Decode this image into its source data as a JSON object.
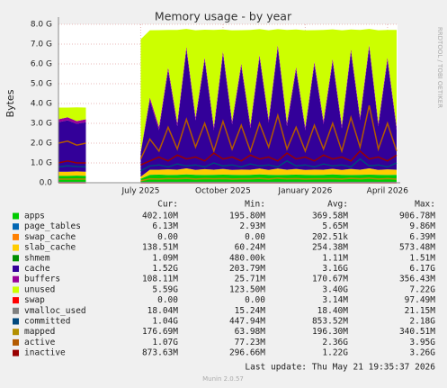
{
  "chart_data": {
    "type": "area",
    "title": "Memory usage - by year",
    "ylabel": "Bytes",
    "side_text": "RRDTOOL / TOBI OETIKER",
    "footer": "Last update: Thu May 21 19:35:37 2026",
    "version": "Munin 2.0.57",
    "grid": true,
    "legend_headers": [
      "Cur:",
      "Min:",
      "Avg:",
      "Max:"
    ],
    "categories": [
      null,
      null,
      null,
      null,
      null,
      null,
      null,
      null,
      null,
      "July 2025",
      null,
      null,
      null,
      null,
      null,
      null,
      null,
      null,
      "October 2025",
      null,
      null,
      null,
      null,
      null,
      null,
      null,
      null,
      "January 2026",
      null,
      null,
      null,
      null,
      null,
      null,
      null,
      null,
      "April 2026",
      null
    ],
    "ylim": [
      0,
      8000000000
    ],
    "yticks": [
      {
        "value": 0,
        "label": "0.0"
      },
      {
        "value": 1000000000,
        "label": "1.0 G"
      },
      {
        "value": 2000000000,
        "label": "2.0 G"
      },
      {
        "value": 3000000000,
        "label": "3.0 G"
      },
      {
        "value": 4000000000,
        "label": "4.0 G"
      },
      {
        "value": 5000000000,
        "label": "5.0 G"
      },
      {
        "value": 6000000000,
        "label": "6.0 G"
      },
      {
        "value": 7000000000,
        "label": "7.0 G"
      },
      {
        "value": 8000000000,
        "label": "8.0 G"
      }
    ],
    "series": [
      {
        "name": "apps",
        "color": "#00cc00",
        "style": "area",
        "cur": "402.10M",
        "min": "195.80M",
        "avg": "369.58M",
        "max": "906.78M",
        "values": [
          350000000.0,
          350000000.0,
          360000000.0,
          350000000.0,
          null,
          null,
          null,
          null,
          null,
          200000000.0,
          400000000.0,
          410000000.0,
          390000000.0,
          400000000.0,
          420000000.0,
          400000000.0,
          390000000.0,
          400000000.0,
          410000000.0,
          400000000.0,
          390000000.0,
          400000000.0,
          420000000.0,
          400000000.0,
          390000000.0,
          400000000.0,
          410000000.0,
          400000000.0,
          390000000.0,
          400000000.0,
          420000000.0,
          400000000.0,
          390000000.0,
          400000000.0,
          410000000.0,
          400000000.0,
          390000000.0,
          400000000.0
        ]
      },
      {
        "name": "page_tables",
        "color": "#0066b3",
        "style": "area",
        "cur": "6.13M",
        "min": "2.93M",
        "avg": "5.65M",
        "max": "9.86M",
        "values": [
          5000000.0,
          5000000.0,
          5000000.0,
          5000000.0,
          null,
          null,
          null,
          null,
          null,
          3000000.0,
          6000000.0,
          6000000.0,
          6000000.0,
          6000000.0,
          6000000.0,
          6000000.0,
          6000000.0,
          6000000.0,
          6000000.0,
          6000000.0,
          6000000.0,
          6000000.0,
          6000000.0,
          6000000.0,
          6000000.0,
          6000000.0,
          6000000.0,
          6000000.0,
          6000000.0,
          6000000.0,
          6000000.0,
          6000000.0,
          6000000.0,
          6000000.0,
          6000000.0,
          6000000.0,
          6000000.0,
          6000000.0
        ]
      },
      {
        "name": "swap_cache",
        "color": "#ff8000",
        "style": "area",
        "cur": "0.00",
        "min": "0.00",
        "avg": "202.51k",
        "max": "6.39M",
        "values": [
          0,
          0,
          0,
          0,
          null,
          null,
          null,
          null,
          null,
          0,
          0,
          0,
          0,
          0,
          0,
          0,
          0,
          0,
          0,
          0,
          0,
          0,
          0,
          0,
          0,
          0,
          0,
          0,
          0,
          0,
          0,
          0,
          0,
          0,
          0,
          0,
          0,
          0
        ]
      },
      {
        "name": "slab_cache",
        "color": "#ffcc00",
        "style": "area",
        "cur": "138.51M",
        "min": "60.24M",
        "avg": "254.38M",
        "max": "573.48M",
        "values": [
          200000000.0,
          200000000.0,
          210000000.0,
          200000000.0,
          null,
          null,
          null,
          null,
          null,
          100000000.0,
          250000000.0,
          240000000.0,
          280000000.0,
          250000000.0,
          300000000.0,
          240000000.0,
          290000000.0,
          250000000.0,
          280000000.0,
          240000000.0,
          270000000.0,
          250000000.0,
          290000000.0,
          240000000.0,
          320000000.0,
          250000000.0,
          280000000.0,
          240000000.0,
          270000000.0,
          250000000.0,
          280000000.0,
          240000000.0,
          300000000.0,
          250000000.0,
          310000000.0,
          240000000.0,
          280000000.0,
          250000000.0
        ]
      },
      {
        "name": "shmem",
        "color": "#008f00",
        "style": "area",
        "cur": "1.09M",
        "min": "480.00k",
        "avg": "1.11M",
        "max": "1.51M",
        "values": [
          1000000.0,
          1000000.0,
          1000000.0,
          1000000.0,
          null,
          null,
          null,
          null,
          null,
          1000000.0,
          1000000.0,
          1000000.0,
          1000000.0,
          1000000.0,
          1000000.0,
          1000000.0,
          1000000.0,
          1000000.0,
          1000000.0,
          1000000.0,
          1000000.0,
          1000000.0,
          1000000.0,
          1000000.0,
          1000000.0,
          1000000.0,
          1000000.0,
          1000000.0,
          1000000.0,
          1000000.0,
          1000000.0,
          1000000.0,
          1000000.0,
          1000000.0,
          1000000.0,
          1000000.0,
          1000000.0,
          1000000.0
        ]
      },
      {
        "name": "cache",
        "color": "#330099",
        "style": "area",
        "cur": "1.52G",
        "min": "203.79M",
        "avg": "3.16G",
        "max": "6.17G",
        "values": [
          2500000000.0,
          2600000000.0,
          2400000000.0,
          2500000000.0,
          null,
          null,
          null,
          null,
          null,
          1200000000.0,
          3500000000.0,
          2000000000.0,
          5000000000.0,
          2200000000.0,
          6000000000.0,
          2500000000.0,
          5500000000.0,
          2000000000.0,
          5800000000.0,
          2300000000.0,
          5200000000.0,
          2100000000.0,
          5600000000.0,
          2400000000.0,
          6100000000.0,
          2200000000.0,
          5000000000.0,
          2000000000.0,
          5300000000.0,
          2300000000.0,
          5400000000.0,
          2100000000.0,
          5900000000.0,
          2500000000.0,
          6100000000.0,
          2200000000.0,
          5500000000.0,
          2000000000.0
        ]
      },
      {
        "name": "buffers",
        "color": "#990099",
        "style": "area",
        "cur": "108.11M",
        "min": "25.71M",
        "avg": "170.67M",
        "max": "356.43M",
        "values": [
          150000000.0,
          150000000.0,
          140000000.0,
          150000000.0,
          null,
          null,
          null,
          null,
          null,
          50000000.0,
          150000000.0,
          160000000.0,
          150000000.0,
          170000000.0,
          150000000.0,
          160000000.0,
          150000000.0,
          170000000.0,
          150000000.0,
          160000000.0,
          150000000.0,
          170000000.0,
          150000000.0,
          160000000.0,
          150000000.0,
          170000000.0,
          150000000.0,
          160000000.0,
          150000000.0,
          170000000.0,
          150000000.0,
          160000000.0,
          150000000.0,
          170000000.0,
          150000000.0,
          160000000.0,
          150000000.0,
          170000000.0
        ]
      },
      {
        "name": "unused",
        "color": "#ccff00",
        "style": "area",
        "cur": "5.59G",
        "min": "123.50M",
        "avg": "3.40G",
        "max": "7.22G",
        "values": [
          590000000.0,
          490000000.0,
          690000000.0,
          590000000.0,
          null,
          null,
          null,
          null,
          null,
          5690000000.0,
          3390000000.0,
          4890000000.0,
          1890000000.0,
          4690000000.0,
          890000000.0,
          4390000000.0,
          1390000000.0,
          4890000000.0,
          1090000000.0,
          4590000000.0,
          1690000000.0,
          4790000000.0,
          1290000000.0,
          4490000000.0,
          790000000.0,
          4690000000.0,
          1890000000.0,
          4890000000.0,
          1590000000.0,
          4590000000.0,
          1490000000.0,
          4790000000.0,
          990000000.0,
          4390000000.0,
          790000000.0,
          4690000000.0,
          1390000000.0,
          4890000000.0
        ]
      },
      {
        "name": "swap",
        "color": "#ff0000",
        "style": "line",
        "cur": "0.00",
        "min": "0.00",
        "avg": "3.14M",
        "max": "97.49M",
        "values": [
          0,
          0,
          0,
          0,
          null,
          null,
          null,
          null,
          null,
          0,
          0,
          0,
          0,
          0,
          0,
          0,
          0,
          0,
          0,
          0,
          0,
          0,
          0,
          0,
          0,
          0,
          0,
          0,
          0,
          0,
          0,
          0,
          0,
          0,
          0,
          0,
          0,
          0
        ]
      },
      {
        "name": "vmalloc_used",
        "color": "#808080",
        "style": "line",
        "cur": "18.04M",
        "min": "15.24M",
        "avg": "18.40M",
        "max": "21.15M",
        "values": [
          18000000.0,
          18000000.0,
          18000000.0,
          18000000.0,
          null,
          null,
          null,
          null,
          null,
          18000000.0,
          18000000.0,
          18000000.0,
          18000000.0,
          18000000.0,
          18000000.0,
          18000000.0,
          18000000.0,
          18000000.0,
          18000000.0,
          18000000.0,
          18000000.0,
          18000000.0,
          18000000.0,
          18000000.0,
          18000000.0,
          18000000.0,
          18000000.0,
          18000000.0,
          18000000.0,
          18000000.0,
          18000000.0,
          18000000.0,
          18000000.0,
          18000000.0,
          18000000.0,
          18000000.0,
          18000000.0,
          18000000.0
        ]
      },
      {
        "name": "committed",
        "color": "#00487d",
        "style": "line",
        "cur": "1.04G",
        "min": "447.94M",
        "avg": "853.52M",
        "max": "2.18G",
        "values": [
          800000000.0,
          850000000.0,
          820000000.0,
          800000000.0,
          null,
          null,
          null,
          null,
          null,
          600000000.0,
          850000000.0,
          900000000.0,
          800000000.0,
          950000000.0,
          850000000.0,
          900000000.0,
          800000000.0,
          1000000000.0,
          850000000.0,
          900000000.0,
          800000000.0,
          950000000.0,
          850000000.0,
          900000000.0,
          800000000.0,
          1100000000.0,
          850000000.0,
          900000000.0,
          800000000.0,
          950000000.0,
          850000000.0,
          900000000.0,
          800000000.0,
          1200000000.0,
          850000000.0,
          900000000.0,
          800000000.0,
          1000000000.0
        ]
      },
      {
        "name": "mapped",
        "color": "#b38f00",
        "style": "line",
        "cur": "176.69M",
        "min": "63.98M",
        "avg": "196.30M",
        "max": "340.51M",
        "values": [
          180000000.0,
          180000000.0,
          190000000.0,
          180000000.0,
          null,
          null,
          null,
          null,
          null,
          100000000.0,
          200000000.0,
          190000000.0,
          210000000.0,
          200000000.0,
          220000000.0,
          190000000.0,
          210000000.0,
          200000000.0,
          210000000.0,
          190000000.0,
          200000000.0,
          200000000.0,
          220000000.0,
          190000000.0,
          230000000.0,
          200000000.0,
          210000000.0,
          190000000.0,
          200000000.0,
          200000000.0,
          210000000.0,
          190000000.0,
          220000000.0,
          200000000.0,
          230000000.0,
          190000000.0,
          210000000.0,
          180000000.0
        ]
      },
      {
        "name": "active",
        "color": "#b35a00",
        "style": "line",
        "cur": "1.07G",
        "min": "77.23M",
        "avg": "2.36G",
        "max": "3.95G",
        "values": [
          2000000000.0,
          2100000000.0,
          1900000000.0,
          2000000000.0,
          null,
          null,
          null,
          null,
          null,
          1200000000.0,
          2200000000.0,
          1600000000.0,
          2800000000.0,
          1700000000.0,
          3200000000.0,
          1800000000.0,
          3000000000.0,
          1600000000.0,
          3100000000.0,
          1700000000.0,
          2900000000.0,
          1600000000.0,
          3000000000.0,
          1800000000.0,
          3400000000.0,
          1700000000.0,
          2800000000.0,
          1600000000.0,
          2900000000.0,
          1700000000.0,
          3000000000.0,
          1600000000.0,
          3300000000.0,
          1800000000.0,
          3900000000.0,
          1700000000.0,
          3000000000.0,
          1600000000.0
        ]
      },
      {
        "name": "inactive",
        "color": "#990000",
        "style": "line",
        "cur": "873.63M",
        "min": "296.66M",
        "avg": "1.22G",
        "max": "3.26G",
        "values": [
          1000000000.0,
          1100000000.0,
          1000000000.0,
          1000000000.0,
          null,
          null,
          null,
          null,
          null,
          900000000.0,
          1100000000.0,
          1300000000.0,
          1100000000.0,
          1400000000.0,
          1200000000.0,
          1300000000.0,
          1100000000.0,
          1500000000.0,
          1200000000.0,
          1300000000.0,
          1100000000.0,
          1400000000.0,
          1200000000.0,
          1300000000.0,
          1100000000.0,
          1500000000.0,
          1200000000.0,
          1300000000.0,
          1100000000.0,
          1400000000.0,
          1200000000.0,
          1300000000.0,
          1100000000.0,
          1600000000.0,
          1200000000.0,
          1300000000.0,
          1100000000.0,
          1400000000.0
        ]
      }
    ]
  }
}
